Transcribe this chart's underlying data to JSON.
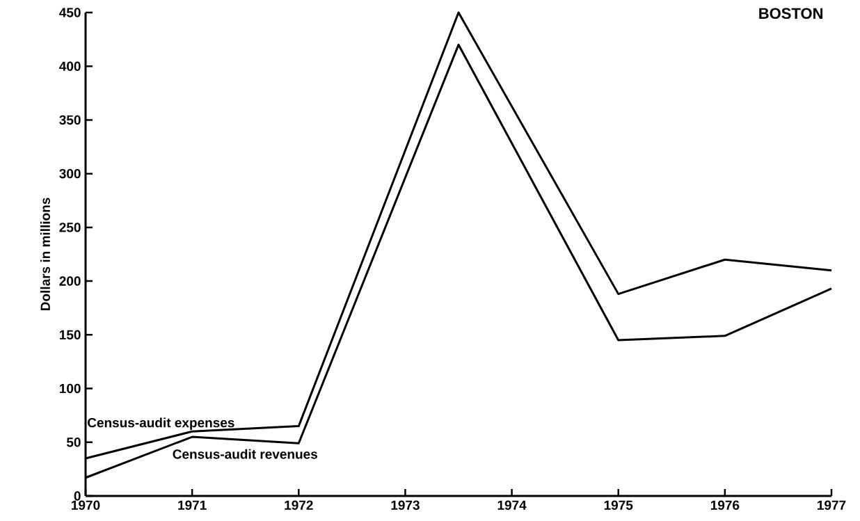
{
  "chart_data": {
    "type": "line",
    "title": "BOSTON",
    "ylabel": "Dollars in millions",
    "xlim": [
      1970,
      1977
    ],
    "xticks": [
      1970,
      1971,
      1972,
      1973,
      1974,
      1975,
      1976,
      1977
    ],
    "ylim": [
      0,
      450
    ],
    "yticks": [
      0,
      50,
      100,
      150,
      200,
      250,
      300,
      350,
      400,
      450
    ],
    "grid": false,
    "legend": false,
    "marker": "none",
    "line_style": "solid",
    "series": [
      {
        "name": "Census-audit expenses",
        "color": "#000000",
        "x": [
          1970,
          1971,
          1972,
          1973.5,
          1975,
          1976,
          1977
        ],
        "values": [
          35,
          60,
          65,
          450,
          188,
          220,
          210
        ]
      },
      {
        "name": "Census-audit revenues",
        "color": "#000000",
        "x": [
          1970,
          1971,
          1972,
          1973.5,
          1975,
          1976,
          1977
        ],
        "values": [
          17,
          55,
          49,
          420,
          145,
          149,
          193
        ]
      }
    ]
  }
}
